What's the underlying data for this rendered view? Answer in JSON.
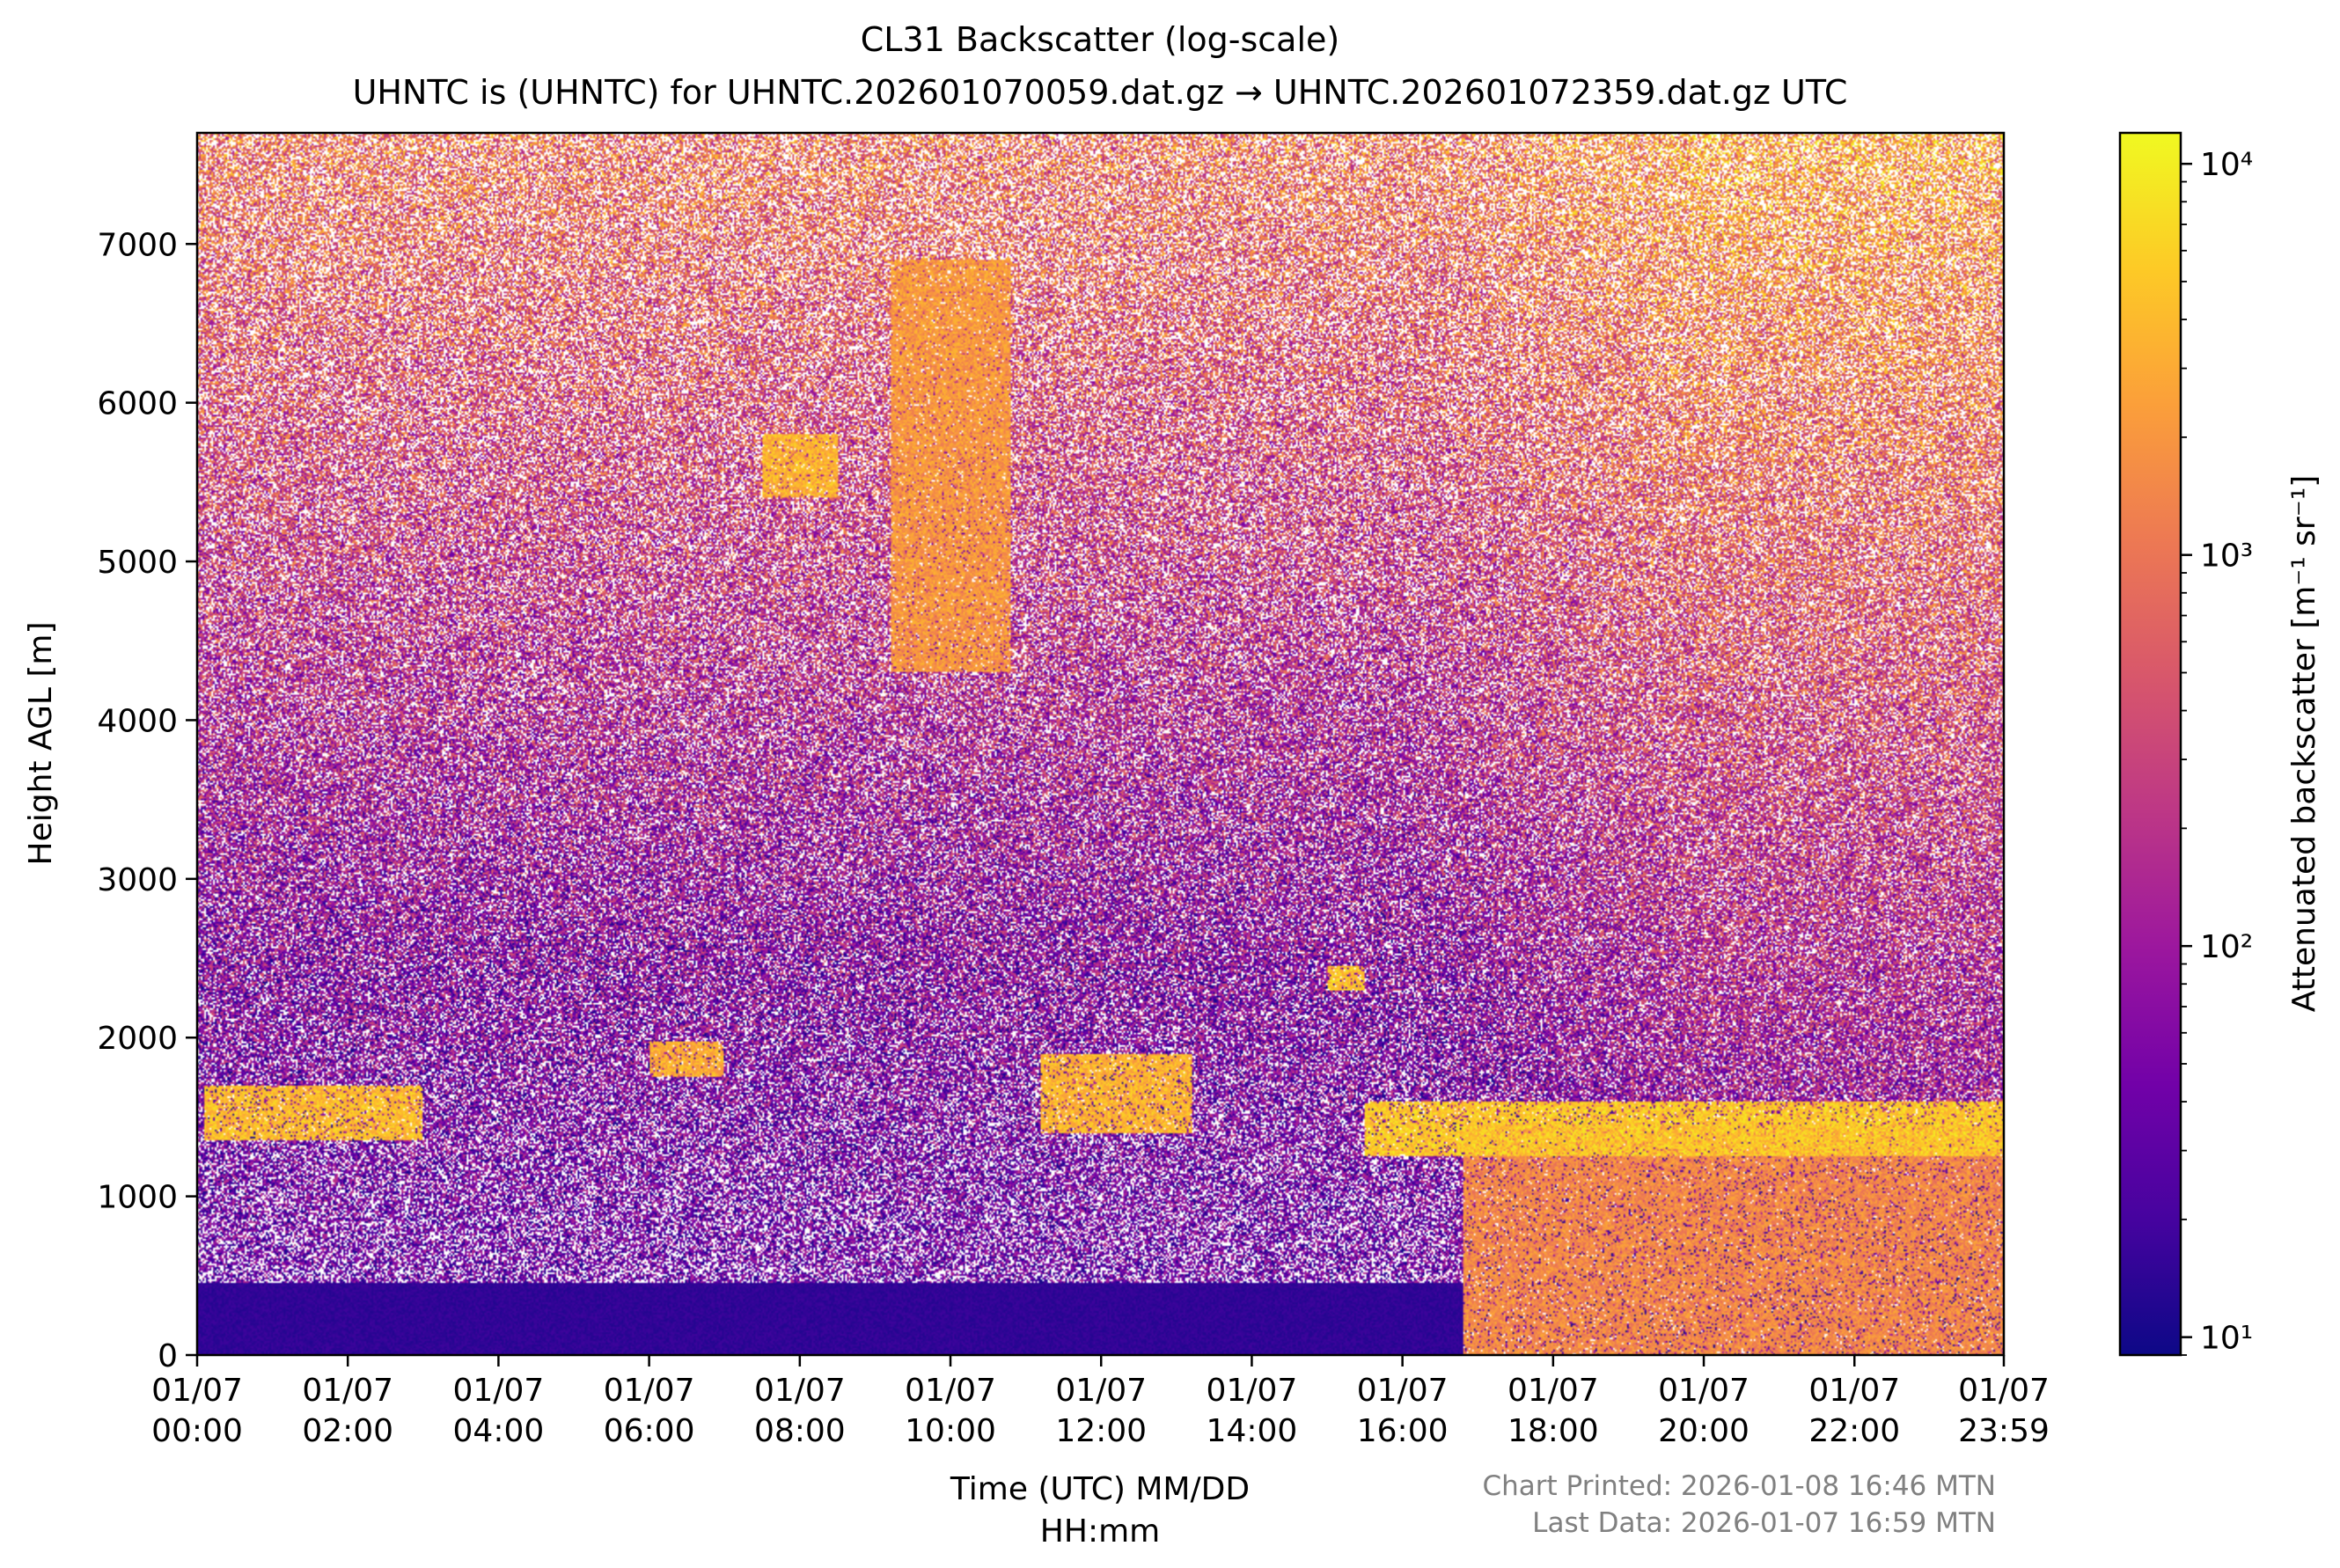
{
  "figure": {
    "title_line1": "CL31 Backscatter (log-scale)",
    "title_line2": "UHNTC is (UHNTC) for UHNTC.202601070059.dat.gz → UHNTC.202601072359.dat.gz UTC",
    "footer_printed": "Chart Printed: 2026-01-08 16:46 MTN",
    "footer_last_data": "Last Data: 2026-01-07 16:59 MTN"
  },
  "chart_data": {
    "type": "heatmap",
    "title": "CL31 Backscatter (log-scale)",
    "subtitle": "UHNTC is (UHNTC) for UHNTC.202601070059.dat.gz → UHNTC.202601072359.dat.gz UTC",
    "xlabel_line1": "Time (UTC) MM/DD",
    "xlabel_line2": "HH:mm",
    "ylabel": "Height AGL [m]",
    "x_unit": "hours UTC on 01/07",
    "xlim": [
      0,
      23.983
    ],
    "ylim": [
      0,
      7700
    ],
    "x_ticks": [
      {
        "value": 0,
        "date": "01/07",
        "time": "00:00"
      },
      {
        "value": 2,
        "date": "01/07",
        "time": "02:00"
      },
      {
        "value": 4,
        "date": "01/07",
        "time": "04:00"
      },
      {
        "value": 6,
        "date": "01/07",
        "time": "06:00"
      },
      {
        "value": 8,
        "date": "01/07",
        "time": "08:00"
      },
      {
        "value": 10,
        "date": "01/07",
        "time": "10:00"
      },
      {
        "value": 12,
        "date": "01/07",
        "time": "12:00"
      },
      {
        "value": 14,
        "date": "01/07",
        "time": "14:00"
      },
      {
        "value": 16,
        "date": "01/07",
        "time": "16:00"
      },
      {
        "value": 18,
        "date": "01/07",
        "time": "18:00"
      },
      {
        "value": 20,
        "date": "01/07",
        "time": "20:00"
      },
      {
        "value": 22,
        "date": "01/07",
        "time": "22:00"
      },
      {
        "value": 23.983,
        "date": "01/07",
        "time": "23:59"
      }
    ],
    "y_ticks": [
      0,
      1000,
      2000,
      3000,
      4000,
      5000,
      6000,
      7000
    ],
    "colorbar": {
      "label": "Attenuated backscatter [m⁻¹ sr⁻¹]",
      "scale": "log",
      "range": [
        9,
        12000
      ],
      "colormap": "plasma",
      "ticks": [
        {
          "value": 10,
          "label": "10¹"
        },
        {
          "value": 100,
          "label": "10²"
        },
        {
          "value": 1000,
          "label": "10³"
        },
        {
          "value": 10000,
          "label": "10⁴"
        }
      ],
      "colors": [
        "#0d0887",
        "#46039f",
        "#7201a8",
        "#9c179e",
        "#bd3786",
        "#d8576b",
        "#ed7953",
        "#fb9f3a",
        "#fdca26",
        "#f0f921"
      ]
    },
    "features": [
      {
        "name": "low cloud layer",
        "t_start": 0.1,
        "t_end": 3.0,
        "base_m": 1350,
        "top_m": 1700,
        "intensity": 8000
      },
      {
        "name": "cloud fragment",
        "t_start": 6.0,
        "t_end": 7.0,
        "base_m": 1750,
        "top_m": 1980,
        "intensity": 6000
      },
      {
        "name": "mid cloud patch",
        "t_start": 7.5,
        "t_end": 8.5,
        "base_m": 5400,
        "top_m": 5800,
        "intensity": 7000
      },
      {
        "name": "fall streak",
        "t_start": 9.2,
        "t_end": 10.8,
        "base_m": 4300,
        "top_m": 6900,
        "intensity": 4000
      },
      {
        "name": "cloud layer",
        "t_start": 11.2,
        "t_end": 13.2,
        "base_m": 1400,
        "top_m": 1900,
        "intensity": 7000
      },
      {
        "name": "cloud patch",
        "t_start": 15.0,
        "t_end": 15.5,
        "base_m": 2300,
        "top_m": 2450,
        "intensity": 9000
      },
      {
        "name": "boundary layer cloud",
        "t_start": 15.5,
        "t_end": 23.983,
        "base_m": 1250,
        "top_m": 1600,
        "intensity": 10000
      },
      {
        "name": "precipitation below cloud",
        "t_start": 16.8,
        "t_end": 23.983,
        "base_m": 0,
        "top_m": 1450,
        "intensity": 3000
      }
    ]
  }
}
